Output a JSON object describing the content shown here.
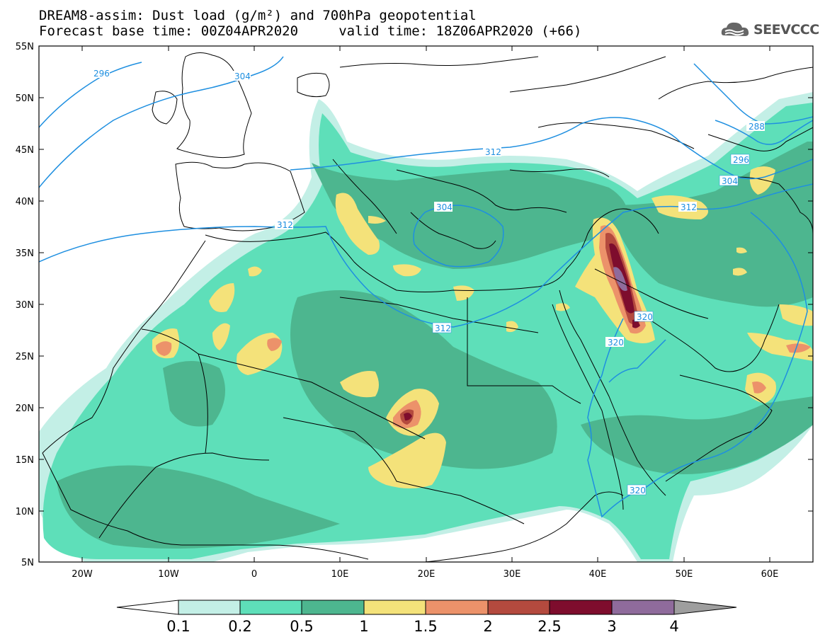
{
  "header": {
    "title_line1": "DREAM8-assim: Dust load (g/m²) and 700hPa geopotential",
    "title_line2": "Forecast base time: 00Z04APR2020     valid time: 18Z06APR2020 (+66)",
    "logo_text": "SEEVCCC"
  },
  "axes": {
    "lat_labels": [
      "55N",
      "50N",
      "45N",
      "40N",
      "35N",
      "30N",
      "25N",
      "20N",
      "15N",
      "10N",
      "5N"
    ],
    "lon_labels": [
      "20W",
      "10W",
      "0",
      "10E",
      "20E",
      "30E",
      "40E",
      "50E",
      "60E"
    ]
  },
  "contours": {
    "labels": [
      "296",
      "304",
      "312",
      "312",
      "312",
      "304",
      "320",
      "320",
      "320",
      "288",
      "296",
      "304",
      "312"
    ],
    "color": "#1e8fe0"
  },
  "colorbar": {
    "labels": [
      "0.1",
      "0.2",
      "0.5",
      "1",
      "1.5",
      "2",
      "2.5",
      "3",
      "4"
    ],
    "colors": [
      "#c3efe6",
      "#5edfb9",
      "#4db68f",
      "#f4e27a",
      "#ec926a",
      "#b44a3e",
      "#7e0d2d",
      "#8f6b9c",
      "#9e9e9e"
    ]
  }
}
